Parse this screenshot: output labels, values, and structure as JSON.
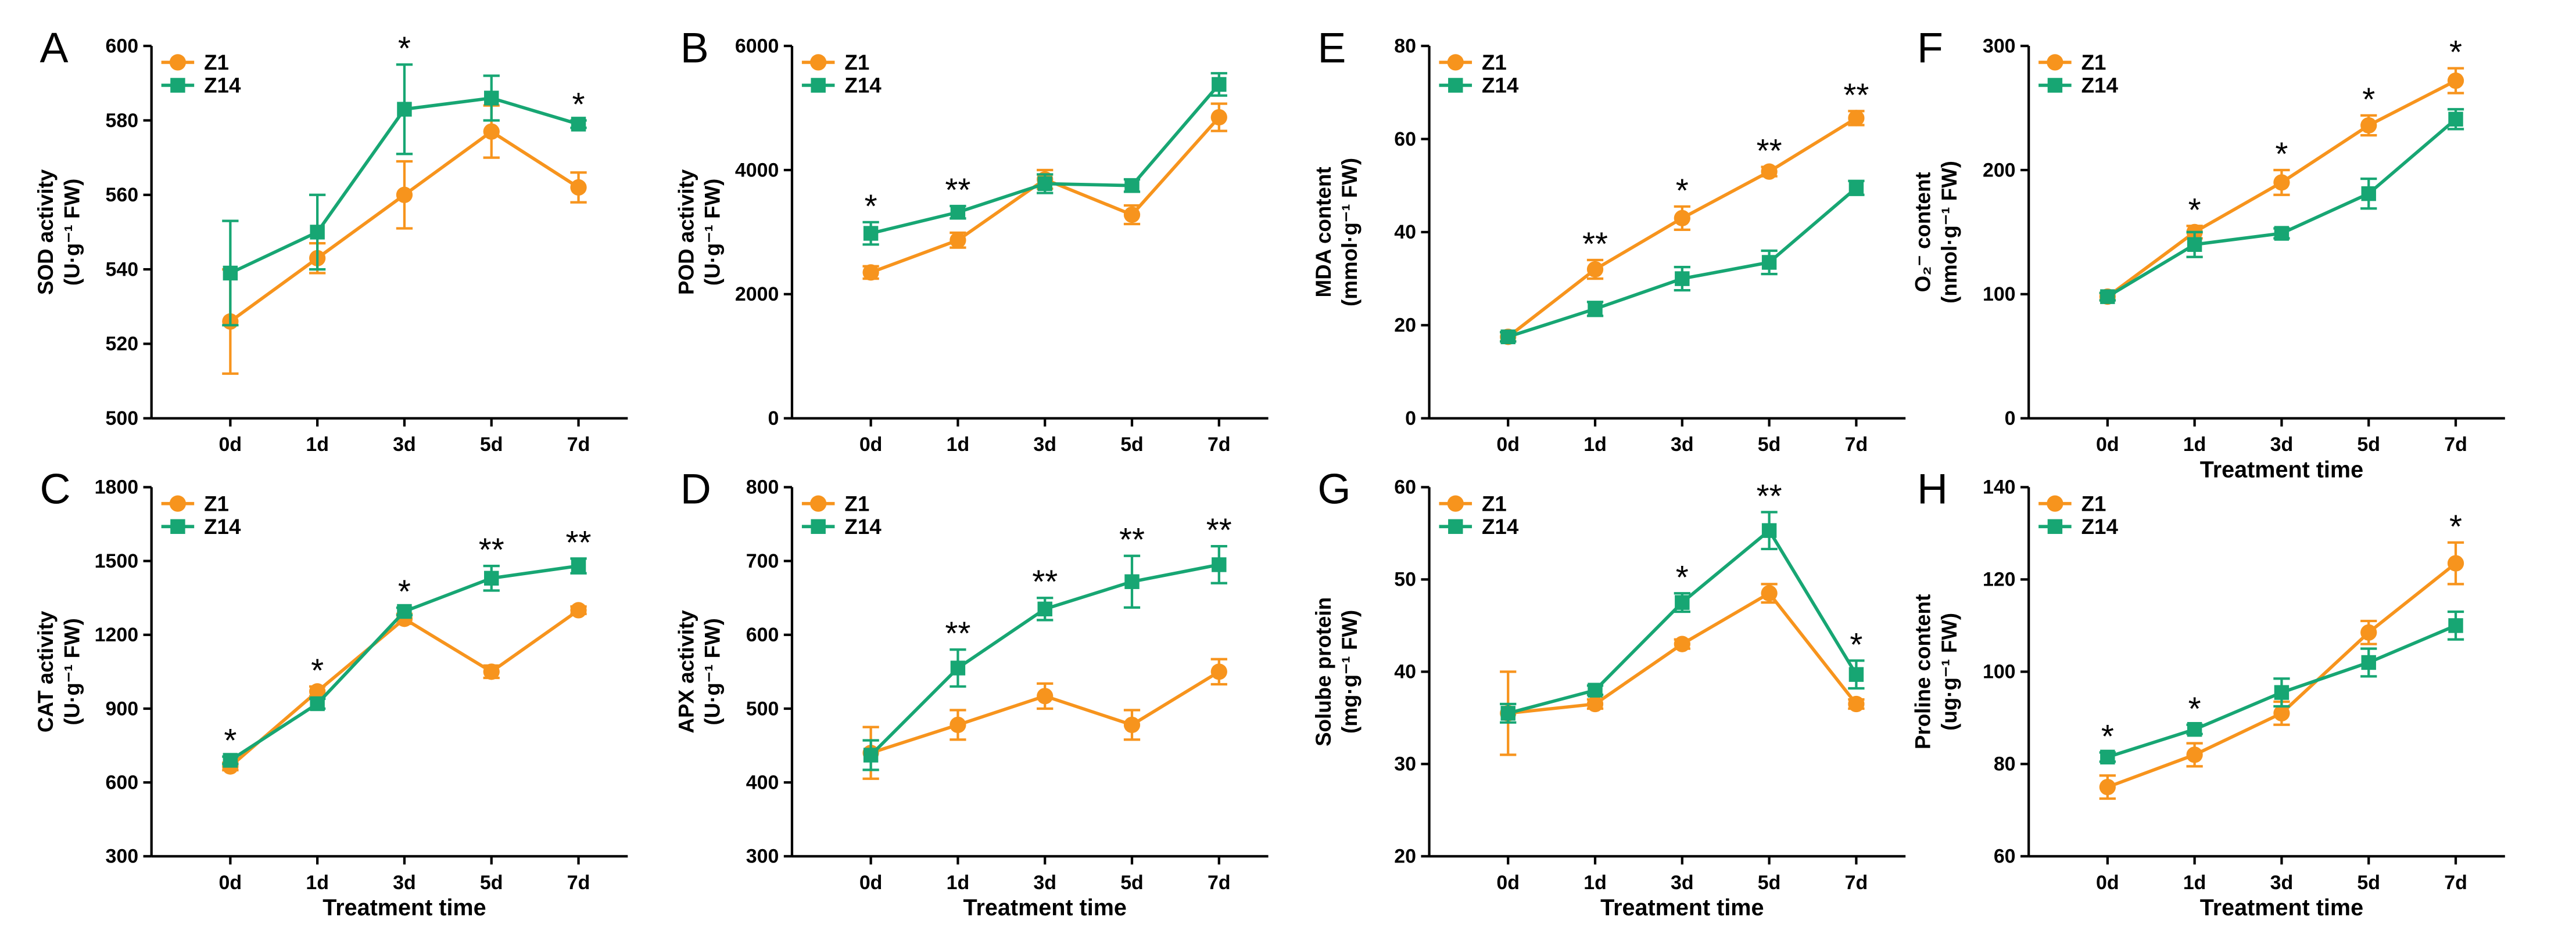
{
  "chart_data": [
    {
      "type": "line",
      "panel_label": "A",
      "ylabel": [
        "SOD activity",
        "(U·g⁻¹ FW)"
      ],
      "categories": [
        "0d",
        "1d",
        "3d",
        "5d",
        "7d"
      ],
      "ylim": [
        500,
        600
      ],
      "yticks": [
        500,
        520,
        540,
        560,
        580,
        600
      ],
      "series": [
        {
          "name": "Z1",
          "color": "#f7941d",
          "marker": "circle",
          "values": [
            526,
            543,
            560,
            577,
            562
          ],
          "errors": [
            14,
            4,
            9,
            7,
            4
          ]
        },
        {
          "name": "Z14",
          "color": "#17a673",
          "marker": "square",
          "values": [
            539,
            550,
            583,
            586,
            579
          ],
          "errors": [
            14,
            10,
            12,
            6,
            1
          ]
        }
      ],
      "significance": [
        null,
        null,
        "*",
        null,
        "*"
      ]
    },
    {
      "type": "line",
      "panel_label": "B",
      "ylabel": [
        "POD activity",
        "(U·g⁻¹ FW)"
      ],
      "categories": [
        "0d",
        "1d",
        "3d",
        "5d",
        "7d"
      ],
      "ylim": [
        0,
        6000
      ],
      "yticks": [
        0,
        2000,
        4000,
        6000
      ],
      "series": [
        {
          "name": "Z1",
          "color": "#f7941d",
          "marker": "circle",
          "values": [
            2350,
            2870,
            3850,
            3280,
            4850
          ],
          "errors": [
            100,
            120,
            150,
            150,
            220
          ]
        },
        {
          "name": "Z14",
          "color": "#17a673",
          "marker": "square",
          "values": [
            2980,
            3320,
            3780,
            3750,
            5380
          ],
          "errors": [
            180,
            100,
            150,
            100,
            180
          ]
        }
      ],
      "significance": [
        "*",
        "**",
        null,
        null,
        null
      ]
    },
    {
      "type": "line",
      "panel_label": "E",
      "ylabel": [
        "MDA content",
        "(mmol·g⁻¹ FW)"
      ],
      "categories": [
        "0d",
        "1d",
        "3d",
        "5d",
        "7d"
      ],
      "ylim": [
        0,
        80
      ],
      "yticks": [
        0,
        20,
        40,
        60,
        80
      ],
      "series": [
        {
          "name": "Z1",
          "color": "#f7941d",
          "marker": "circle",
          "values": [
            17.5,
            32,
            43,
            53,
            64.5
          ],
          "errors": [
            1,
            2,
            2.5,
            1,
            1.5
          ]
        },
        {
          "name": "Z14",
          "color": "#17a673",
          "marker": "square",
          "values": [
            17.5,
            23.5,
            30,
            33.5,
            49.5
          ],
          "errors": [
            1,
            1.5,
            2.5,
            2.5,
            1.5
          ]
        }
      ],
      "significance": [
        null,
        "**",
        "*",
        "**",
        "**"
      ]
    },
    {
      "type": "line",
      "panel_label": "F",
      "ylabel": [
        "O₂⁻ content",
        "(nmol·g⁻¹ FW)"
      ],
      "xlabel": "Treatment time",
      "categories": [
        "0d",
        "1d",
        "3d",
        "5d",
        "7d"
      ],
      "ylim": [
        0,
        300
      ],
      "yticks": [
        0,
        100,
        200,
        300
      ],
      "series": [
        {
          "name": "Z1",
          "color": "#f7941d",
          "marker": "circle",
          "values": [
            98,
            150,
            190,
            236,
            272
          ],
          "errors": [
            3,
            5,
            10,
            8,
            10
          ]
        },
        {
          "name": "Z14",
          "color": "#17a673",
          "marker": "square",
          "values": [
            98,
            140,
            149,
            181,
            241
          ],
          "errors": [
            3,
            10,
            4,
            12,
            8
          ]
        }
      ],
      "significance": [
        null,
        "*",
        "*",
        "*",
        "*"
      ]
    },
    {
      "type": "line",
      "panel_label": "C",
      "ylabel": [
        "CAT activity",
        "(U·g⁻¹ FW)"
      ],
      "xlabel": "Treatment time",
      "categories": [
        "0d",
        "1d",
        "3d",
        "5d",
        "7d"
      ],
      "ylim": [
        300,
        1800
      ],
      "yticks": [
        300,
        600,
        900,
        1200,
        1500,
        1800
      ],
      "series": [
        {
          "name": "Z1",
          "color": "#f7941d",
          "marker": "circle",
          "values": [
            665,
            970,
            1265,
            1050,
            1300
          ],
          "errors": [
            15,
            20,
            20,
            25,
            15
          ]
        },
        {
          "name": "Z14",
          "color": "#17a673",
          "marker": "square",
          "values": [
            690,
            920,
            1295,
            1430,
            1480
          ],
          "errors": [
            15,
            20,
            15,
            50,
            30
          ]
        }
      ],
      "significance": [
        "*",
        "*",
        "*",
        "**",
        "**"
      ]
    },
    {
      "type": "line",
      "panel_label": "D",
      "ylabel": [
        "APX activity",
        "(U·g⁻¹ FW)"
      ],
      "xlabel": "Treatment time",
      "categories": [
        "0d",
        "1d",
        "3d",
        "5d",
        "7d"
      ],
      "ylim": [
        300,
        800
      ],
      "yticks": [
        300,
        400,
        500,
        600,
        700,
        800
      ],
      "series": [
        {
          "name": "Z1",
          "color": "#f7941d",
          "marker": "circle",
          "values": [
            440,
            478,
            517,
            478,
            550
          ],
          "errors": [
            35,
            20,
            17,
            20,
            17
          ]
        },
        {
          "name": "Z14",
          "color": "#17a673",
          "marker": "square",
          "values": [
            437,
            555,
            635,
            672,
            695
          ],
          "errors": [
            20,
            25,
            15,
            35,
            25
          ]
        }
      ],
      "significance": [
        null,
        "**",
        "**",
        "**",
        "**"
      ]
    },
    {
      "type": "line",
      "panel_label": "G",
      "ylabel": [
        "Solube protein",
        "(mg·g⁻¹ FW)"
      ],
      "xlabel": "Treatment time",
      "categories": [
        "0d",
        "1d",
        "3d",
        "5d",
        "7d"
      ],
      "ylim": [
        20,
        60
      ],
      "yticks": [
        20,
        30,
        40,
        50,
        60
      ],
      "series": [
        {
          "name": "Z1",
          "color": "#f7941d",
          "marker": "circle",
          "values": [
            35.5,
            36.5,
            43,
            48.5,
            36.5
          ],
          "errors": [
            4.5,
            0.5,
            0.5,
            1,
            0.5
          ]
        },
        {
          "name": "Z14",
          "color": "#17a673",
          "marker": "square",
          "values": [
            35.5,
            38,
            47.5,
            55.3,
            39.7
          ],
          "errors": [
            1,
            0.5,
            1,
            2,
            1.5
          ]
        }
      ],
      "significance": [
        null,
        null,
        "*",
        "**",
        "*"
      ]
    },
    {
      "type": "line",
      "panel_label": "H",
      "ylabel": [
        "Proline content",
        "(ug·g⁻¹ FW)"
      ],
      "xlabel": "Treatment time",
      "categories": [
        "0d",
        "1d",
        "3d",
        "5d",
        "7d"
      ],
      "ylim": [
        60,
        140
      ],
      "yticks": [
        60,
        80,
        100,
        120,
        140
      ],
      "series": [
        {
          "name": "Z1",
          "color": "#f7941d",
          "marker": "circle",
          "values": [
            75,
            82,
            91,
            108.5,
            123.5
          ],
          "errors": [
            2.5,
            2.5,
            2.5,
            2.5,
            4.5
          ]
        },
        {
          "name": "Z14",
          "color": "#17a673",
          "marker": "square",
          "values": [
            81.5,
            87.5,
            95.5,
            102,
            110
          ],
          "errors": [
            1,
            1,
            3,
            3,
            3
          ]
        }
      ],
      "significance": [
        "*",
        "*",
        null,
        null,
        "*"
      ]
    }
  ]
}
